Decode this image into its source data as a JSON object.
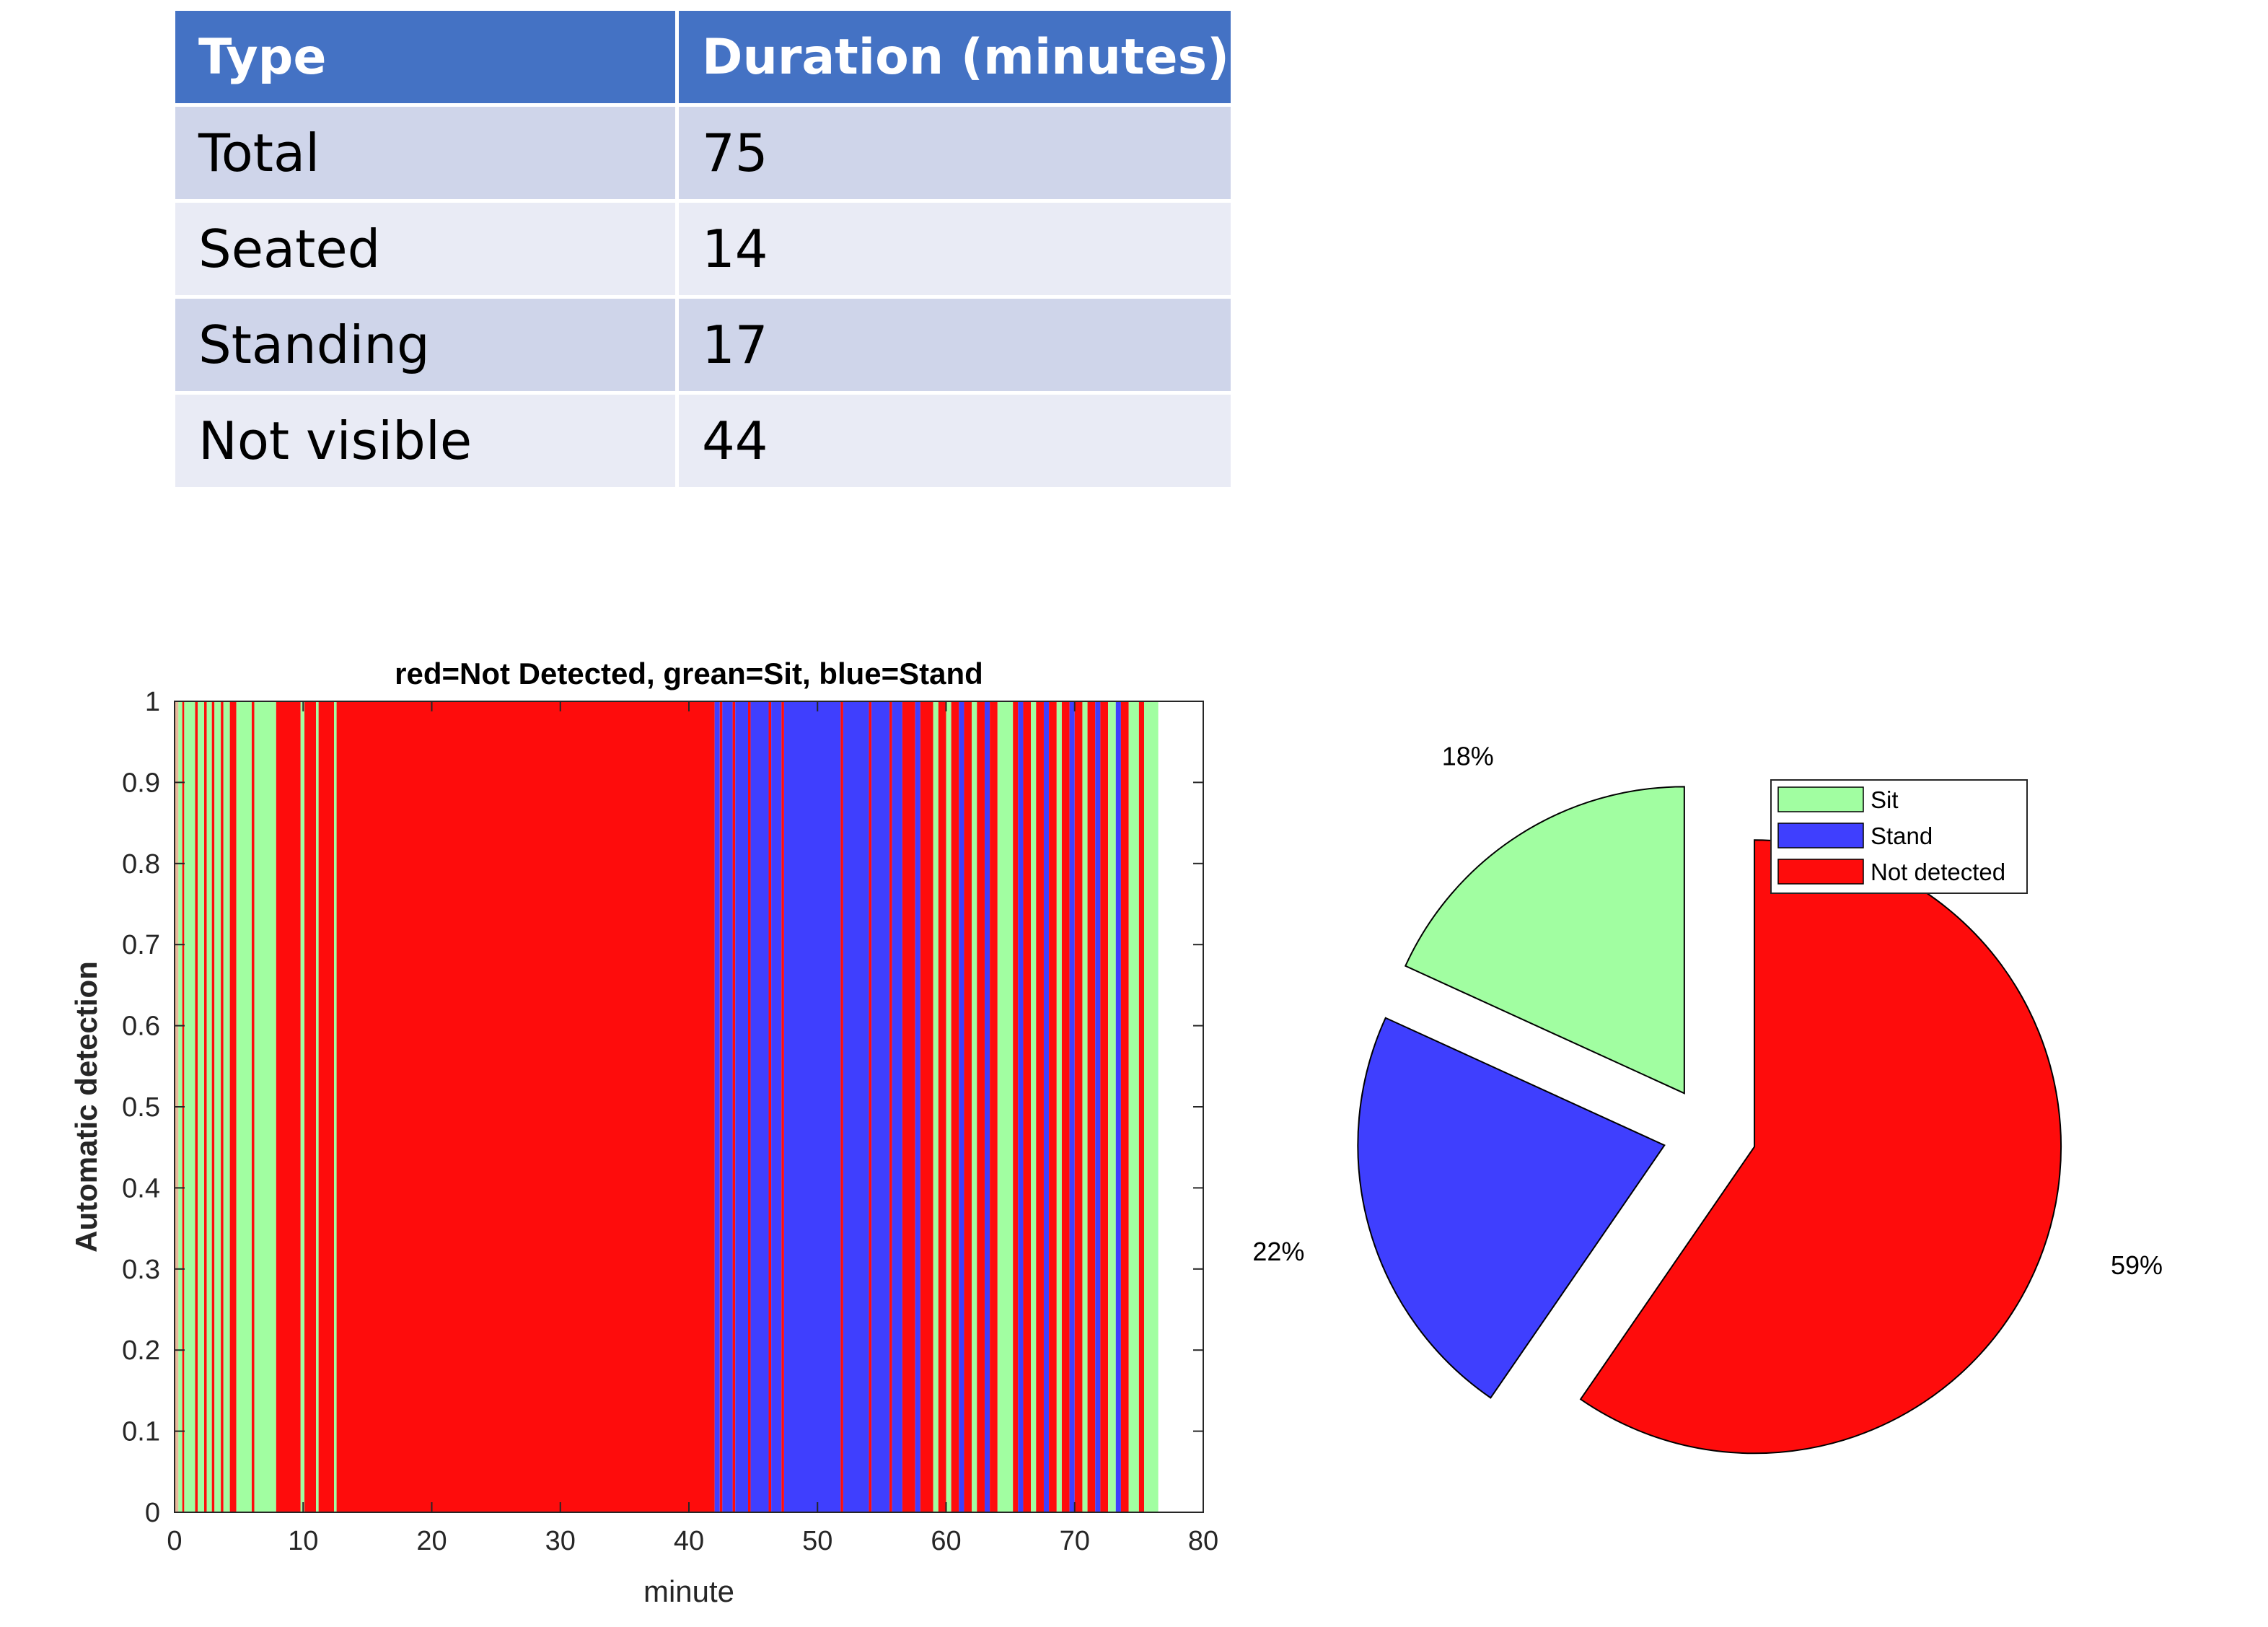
{
  "table": {
    "headers": [
      "Type",
      "Duration (minutes)"
    ],
    "rows": [
      [
        "Total",
        "75"
      ],
      [
        "Seated",
        "14"
      ],
      [
        "Standing",
        "17"
      ],
      [
        "Not visible",
        "44"
      ]
    ]
  },
  "colors": {
    "header": "#4472c4",
    "row_odd": "#cfd5ea",
    "row_even": "#e9ebf5",
    "sit": "#a1fea1",
    "stand": "#3f3ffe",
    "not_detected": "#fe0c0c",
    "unknown": "#e8b89a"
  },
  "chart_data": [
    {
      "type": "bar",
      "title": "red=Not Detected, grean=Sit, blue=Stand",
      "xlabel": "minute",
      "ylabel": "Automatic detection",
      "xlim": [
        0,
        80
      ],
      "ylim": [
        0,
        1
      ],
      "xticks": [
        0,
        10,
        20,
        30,
        40,
        50,
        60,
        70,
        80
      ],
      "yticks": [
        0,
        0.1,
        0.2,
        0.3,
        0.4,
        0.5,
        0.6,
        0.7,
        0.8,
        0.9,
        1
      ],
      "xtick_labels": [
        "0",
        "10",
        "20",
        "30",
        "40",
        "50",
        "60",
        "70",
        "80"
      ],
      "ytick_labels": [
        "0",
        "0.1",
        "0.2",
        "0.3",
        "0.4",
        "0.5",
        "0.6",
        "0.7",
        "0.8",
        "0.9",
        "1"
      ],
      "bar_height": 1,
      "segments": [
        {
          "start": 0.0,
          "end": 0.3,
          "state": "unknown"
        },
        {
          "start": 0.3,
          "end": 0.6,
          "state": "sit"
        },
        {
          "start": 0.6,
          "end": 0.75,
          "state": "not_detected"
        },
        {
          "start": 0.75,
          "end": 1.6,
          "state": "sit"
        },
        {
          "start": 1.6,
          "end": 1.8,
          "state": "not_detected"
        },
        {
          "start": 1.8,
          "end": 2.3,
          "state": "sit"
        },
        {
          "start": 2.3,
          "end": 2.5,
          "state": "not_detected"
        },
        {
          "start": 2.5,
          "end": 2.9,
          "state": "sit"
        },
        {
          "start": 2.9,
          "end": 3.1,
          "state": "not_detected"
        },
        {
          "start": 3.1,
          "end": 3.6,
          "state": "sit"
        },
        {
          "start": 3.6,
          "end": 3.8,
          "state": "not_detected"
        },
        {
          "start": 3.8,
          "end": 4.3,
          "state": "sit"
        },
        {
          "start": 4.3,
          "end": 4.8,
          "state": "not_detected"
        },
        {
          "start": 4.8,
          "end": 6.0,
          "state": "sit"
        },
        {
          "start": 6.0,
          "end": 6.2,
          "state": "not_detected"
        },
        {
          "start": 6.2,
          "end": 7.9,
          "state": "sit"
        },
        {
          "start": 7.9,
          "end": 9.8,
          "state": "not_detected"
        },
        {
          "start": 9.8,
          "end": 10.1,
          "state": "sit"
        },
        {
          "start": 10.1,
          "end": 11.0,
          "state": "not_detected"
        },
        {
          "start": 11.0,
          "end": 11.2,
          "state": "sit"
        },
        {
          "start": 11.2,
          "end": 12.4,
          "state": "not_detected"
        },
        {
          "start": 12.4,
          "end": 12.6,
          "state": "sit"
        },
        {
          "start": 12.6,
          "end": 42.0,
          "state": "not_detected"
        },
        {
          "start": 42.0,
          "end": 42.4,
          "state": "stand"
        },
        {
          "start": 42.4,
          "end": 42.6,
          "state": "not_detected"
        },
        {
          "start": 42.6,
          "end": 43.4,
          "state": "stand"
        },
        {
          "start": 43.4,
          "end": 43.6,
          "state": "not_detected"
        },
        {
          "start": 43.6,
          "end": 44.6,
          "state": "stand"
        },
        {
          "start": 44.6,
          "end": 44.8,
          "state": "not_detected"
        },
        {
          "start": 44.8,
          "end": 46.2,
          "state": "stand"
        },
        {
          "start": 46.2,
          "end": 46.4,
          "state": "not_detected"
        },
        {
          "start": 46.4,
          "end": 47.2,
          "state": "stand"
        },
        {
          "start": 47.2,
          "end": 47.4,
          "state": "not_detected"
        },
        {
          "start": 47.4,
          "end": 51.8,
          "state": "stand"
        },
        {
          "start": 51.8,
          "end": 52.0,
          "state": "not_detected"
        },
        {
          "start": 52.0,
          "end": 54.0,
          "state": "stand"
        },
        {
          "start": 54.0,
          "end": 54.2,
          "state": "not_detected"
        },
        {
          "start": 54.2,
          "end": 55.6,
          "state": "stand"
        },
        {
          "start": 55.6,
          "end": 55.8,
          "state": "not_detected"
        },
        {
          "start": 55.8,
          "end": 56.6,
          "state": "stand"
        },
        {
          "start": 56.6,
          "end": 57.6,
          "state": "not_detected"
        },
        {
          "start": 57.6,
          "end": 58.0,
          "state": "stand"
        },
        {
          "start": 58.0,
          "end": 59.0,
          "state": "not_detected"
        },
        {
          "start": 59.0,
          "end": 59.4,
          "state": "sit"
        },
        {
          "start": 59.4,
          "end": 60.0,
          "state": "not_detected"
        },
        {
          "start": 60.0,
          "end": 60.4,
          "state": "sit"
        },
        {
          "start": 60.4,
          "end": 61.0,
          "state": "not_detected"
        },
        {
          "start": 61.0,
          "end": 61.4,
          "state": "stand"
        },
        {
          "start": 61.4,
          "end": 62.0,
          "state": "not_detected"
        },
        {
          "start": 62.0,
          "end": 62.4,
          "state": "sit"
        },
        {
          "start": 62.4,
          "end": 63.0,
          "state": "not_detected"
        },
        {
          "start": 63.0,
          "end": 63.4,
          "state": "stand"
        },
        {
          "start": 63.4,
          "end": 64.0,
          "state": "not_detected"
        },
        {
          "start": 64.0,
          "end": 65.2,
          "state": "sit"
        },
        {
          "start": 65.2,
          "end": 65.6,
          "state": "not_detected"
        },
        {
          "start": 65.6,
          "end": 66.0,
          "state": "stand"
        },
        {
          "start": 66.0,
          "end": 66.6,
          "state": "not_detected"
        },
        {
          "start": 66.6,
          "end": 67.0,
          "state": "sit"
        },
        {
          "start": 67.0,
          "end": 67.6,
          "state": "not_detected"
        },
        {
          "start": 67.6,
          "end": 68.0,
          "state": "stand"
        },
        {
          "start": 68.0,
          "end": 68.6,
          "state": "not_detected"
        },
        {
          "start": 68.6,
          "end": 69.0,
          "state": "sit"
        },
        {
          "start": 69.0,
          "end": 69.6,
          "state": "not_detected"
        },
        {
          "start": 69.6,
          "end": 70.0,
          "state": "stand"
        },
        {
          "start": 70.0,
          "end": 70.6,
          "state": "not_detected"
        },
        {
          "start": 70.6,
          "end": 71.0,
          "state": "sit"
        },
        {
          "start": 71.0,
          "end": 71.6,
          "state": "not_detected"
        },
        {
          "start": 71.6,
          "end": 72.0,
          "state": "stand"
        },
        {
          "start": 72.0,
          "end": 72.6,
          "state": "not_detected"
        },
        {
          "start": 72.6,
          "end": 73.2,
          "state": "sit"
        },
        {
          "start": 73.2,
          "end": 73.6,
          "state": "stand"
        },
        {
          "start": 73.6,
          "end": 74.2,
          "state": "not_detected"
        },
        {
          "start": 74.2,
          "end": 75.0,
          "state": "sit"
        },
        {
          "start": 75.0,
          "end": 75.4,
          "state": "not_detected"
        },
        {
          "start": 75.4,
          "end": 76.5,
          "state": "sit"
        }
      ]
    },
    {
      "type": "pie",
      "slices": [
        {
          "name": "Sit",
          "value": 18,
          "label": "18%",
          "color": "#a1fea1"
        },
        {
          "name": "Stand",
          "value": 22,
          "label": "22%",
          "color": "#3f3ffe"
        },
        {
          "name": "Not detected",
          "value": 59,
          "label": "59%",
          "color": "#fe0c0c"
        }
      ],
      "exploded": true,
      "legend": [
        "Sit",
        "Stand",
        "Not detected"
      ],
      "legend_position": "top-right"
    }
  ]
}
